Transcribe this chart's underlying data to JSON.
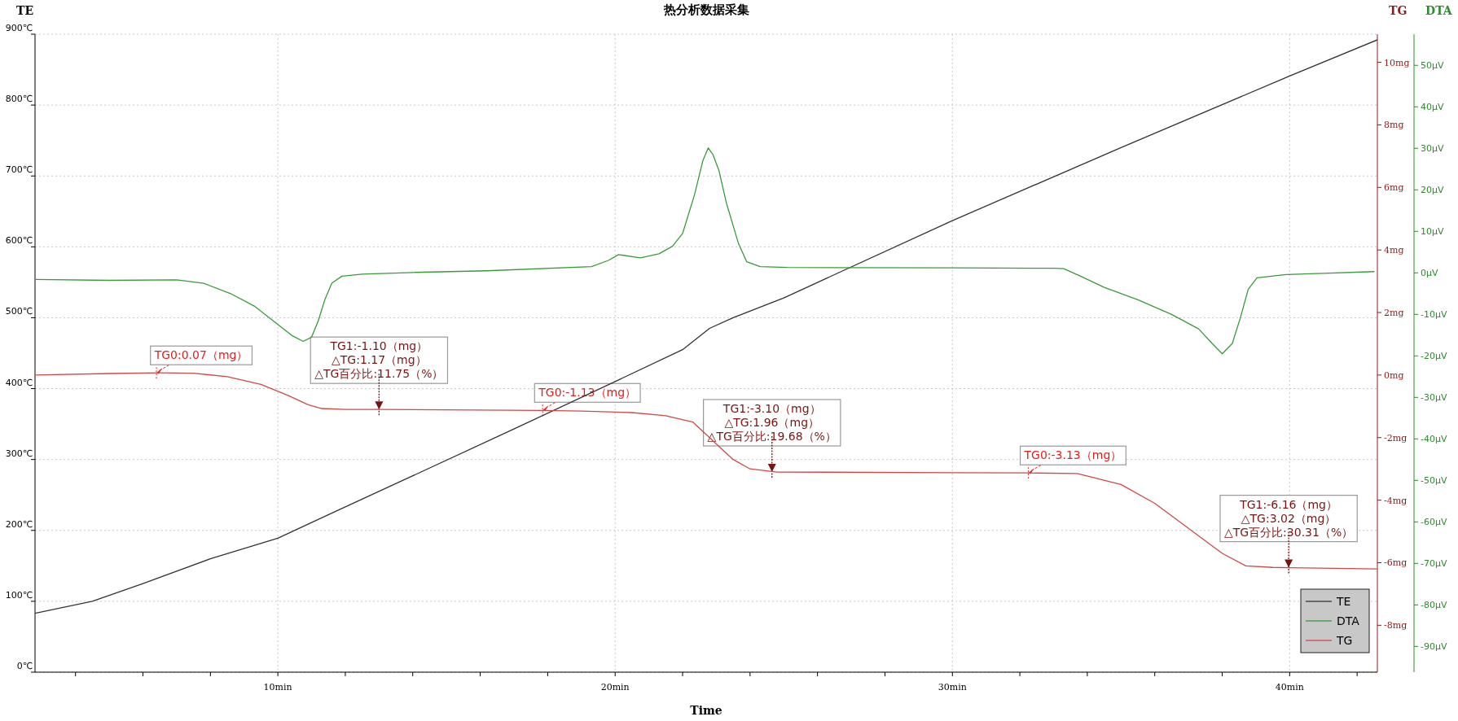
{
  "chart_data": {
    "type": "line",
    "title": "热分析数据采集",
    "xlabel": "Time",
    "ylabel": "TE",
    "y2label": "TG",
    "y3label": "DTA",
    "xlim": [
      2.8,
      42.6
    ],
    "xticks": [
      {
        "value": 4,
        "label": null
      },
      {
        "value": 6,
        "label": null
      },
      {
        "value": 8,
        "label": null
      },
      {
        "value": 10,
        "label": "10min"
      },
      {
        "value": 12,
        "label": null
      },
      {
        "value": 14,
        "label": null
      },
      {
        "value": 16,
        "label": null
      },
      {
        "value": 18,
        "label": null
      },
      {
        "value": 20,
        "label": "20min"
      },
      {
        "value": 22,
        "label": null
      },
      {
        "value": 24,
        "label": null
      },
      {
        "value": 26,
        "label": null
      },
      {
        "value": 28,
        "label": null
      },
      {
        "value": 30,
        "label": "30min"
      },
      {
        "value": 32,
        "label": null
      },
      {
        "value": 34,
        "label": null
      },
      {
        "value": 36,
        "label": null
      },
      {
        "value": 38,
        "label": null
      },
      {
        "value": 40,
        "label": "40min"
      },
      {
        "value": 42,
        "label": null
      }
    ],
    "ylim": [
      0,
      900
    ],
    "yticks": [
      {
        "value": 0,
        "label": "0℃"
      },
      {
        "value": 100,
        "label": "100℃"
      },
      {
        "value": 200,
        "label": "200℃"
      },
      {
        "value": 300,
        "label": "300℃"
      },
      {
        "value": 400,
        "label": "400℃"
      },
      {
        "value": 500,
        "label": "500℃"
      },
      {
        "value": 600,
        "label": "600℃"
      },
      {
        "value": 700,
        "label": "700℃"
      },
      {
        "value": 800,
        "label": "800℃"
      },
      {
        "value": 900,
        "label": "900℃"
      }
    ],
    "y2lim": [
      -9.5,
      10.9
    ],
    "y2ticks": [
      {
        "value": -8,
        "label": "-8mg"
      },
      {
        "value": -6,
        "label": "-6mg"
      },
      {
        "value": -4,
        "label": "-4mg"
      },
      {
        "value": -2,
        "label": "-2mg"
      },
      {
        "value": 0,
        "label": "0mg"
      },
      {
        "value": 2,
        "label": "2mg"
      },
      {
        "value": 4,
        "label": "4mg"
      },
      {
        "value": 6,
        "label": "6mg"
      },
      {
        "value": 8,
        "label": "8mg"
      },
      {
        "value": 10,
        "label": "10mg"
      }
    ],
    "y3lim": [
      -96.2,
      57.5
    ],
    "y3ticks": [
      {
        "value": -90,
        "label": "-90μV"
      },
      {
        "value": -80,
        "label": "-80μV"
      },
      {
        "value": -70,
        "label": "-70μV"
      },
      {
        "value": -60,
        "label": "-60μV"
      },
      {
        "value": -50,
        "label": "-50μV"
      },
      {
        "value": -40,
        "label": "-40μV"
      },
      {
        "value": -30,
        "label": "-30μV"
      },
      {
        "value": -20,
        "label": "-20μV"
      },
      {
        "value": -10,
        "label": "-10μV"
      },
      {
        "value": 0,
        "label": "0μV"
      },
      {
        "value": 10,
        "label": "10μV"
      },
      {
        "value": 20,
        "label": "20μV"
      },
      {
        "value": 30,
        "label": "30μV"
      },
      {
        "value": 40,
        "label": "40μV"
      },
      {
        "value": 50,
        "label": "50μV"
      }
    ],
    "grid": true,
    "legend": "bottom right",
    "series": [
      {
        "name": "TE",
        "color": "#333333",
        "axis": "y",
        "x": [
          2.8,
          4.5,
          6.0,
          8.0,
          10.0,
          11.4,
          14.0,
          17.0,
          20.0,
          22.0,
          22.8,
          23.5,
          25.0,
          30.0,
          35.0,
          40.0,
          42.6
        ],
        "values": [
          83,
          100,
          125,
          160,
          189,
          220,
          277,
          343,
          410,
          455,
          485,
          500,
          528,
          637,
          740,
          841,
          892
        ]
      },
      {
        "name": "DTA",
        "color": "#3a9a3a",
        "axis": "y3",
        "x": [
          2.8,
          5.0,
          7.0,
          7.8,
          8.6,
          9.3,
          9.9,
          10.4,
          10.75,
          11.0,
          11.2,
          11.4,
          11.6,
          11.9,
          12.5,
          14.0,
          16.2,
          19.3,
          19.8,
          20.1,
          20.75,
          21.3,
          21.7,
          22.0,
          22.35,
          22.6,
          22.76,
          22.9,
          23.08,
          23.3,
          23.66,
          23.9,
          24.3,
          25.1,
          30.0,
          33.0,
          33.3,
          33.8,
          34.5,
          35.5,
          36.5,
          37.3,
          37.7,
          38.0,
          38.3,
          38.55,
          38.77,
          39.03,
          39.9,
          41.0,
          42.5
        ],
        "values": [
          -1.6,
          -1.8,
          -1.7,
          -2.5,
          -5,
          -8,
          -11.8,
          -15,
          -16.5,
          -15.5,
          -11.5,
          -6.3,
          -2.5,
          -0.8,
          -0.3,
          0.1,
          0.5,
          1.5,
          3,
          4.4,
          3.6,
          4.6,
          6.4,
          9.5,
          18.7,
          27,
          30.1,
          28.5,
          24.6,
          16.8,
          7.0,
          2.7,
          1.5,
          1.3,
          1.2,
          1.1,
          1.0,
          -0.8,
          -3.5,
          -6.5,
          -10,
          -13.5,
          -17,
          -19.5,
          -17,
          -10.5,
          -4,
          -1.2,
          -0.4,
          -0.1,
          0.3
        ]
      },
      {
        "name": "TG",
        "color": "#d04848",
        "axis": "y2",
        "x": [
          2.8,
          5.0,
          6.5,
          7.5,
          8.5,
          9.5,
          10.3,
          10.9,
          11.3,
          12.0,
          13.0,
          17.8,
          19.0,
          20.5,
          21.5,
          22.3,
          23.0,
          23.5,
          24.0,
          24.8,
          30.0,
          32.3,
          33.7,
          35.0,
          36.0,
          37.0,
          38.0,
          38.7,
          39.5,
          40.0,
          42.6
        ],
        "values": [
          0.0,
          0.05,
          0.07,
          0.06,
          -0.05,
          -0.3,
          -0.65,
          -0.95,
          -1.07,
          -1.1,
          -1.1,
          -1.13,
          -1.15,
          -1.2,
          -1.3,
          -1.5,
          -2.2,
          -2.7,
          -3.0,
          -3.1,
          -3.12,
          -3.13,
          -3.15,
          -3.5,
          -4.1,
          -4.9,
          -5.7,
          -6.1,
          -6.15,
          -6.16,
          -6.2
        ]
      }
    ],
    "annotations": [
      {
        "text": "TG0:0.07（mg）",
        "x": 6.4,
        "y": 422.2
      },
      {
        "text": "TG1:-1.10（mg）\n△TG:1.17（mg）\n△TG百分比:11.75（%）",
        "x": 13.0,
        "y": 370.6
      },
      {
        "text": "TG0:-1.13（mg）",
        "x": 17.85,
        "y": 369.3
      },
      {
        "text": "TG1:-3.10（mg）\n△TG:1.96（mg）\n△TG百分比:19.68（%）",
        "x": 24.65,
        "y": 282.4
      },
      {
        "text": "TG0:-3.13（mg）",
        "x": 32.25,
        "y": 281.0
      },
      {
        "text": "TG1:-6.16（mg）\n△TG:3.02（mg）\n△TG百分比:30.31（%）",
        "x": 39.97,
        "y": 147.4
      }
    ]
  }
}
